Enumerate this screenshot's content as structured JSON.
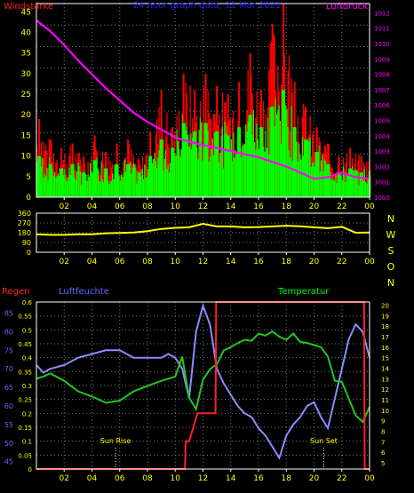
{
  "title": "24 hour graph data, 31 Mar 2021",
  "colors": {
    "background": "#000000",
    "grid": "#7a7a7a",
    "frame": "#ffffff",
    "wind_peak": "#ff0000",
    "wind_avg": "#00ff00",
    "pressure": "#ff00ff",
    "direction": "#ffff00",
    "rain": "#ff2020",
    "humidity": "#8c8cff",
    "temperature": "#1ec81e",
    "tick_text": "#ffff00",
    "pressure_text": "#ff00ff",
    "humidity_text": "#6464ff",
    "rain_text": "#ff2020",
    "temp_text": "#00ff00"
  },
  "chart_data": [
    {
      "type": "bar",
      "title": "24 hour graph data, 31 Mar 2021",
      "left_axis_label": "Windstärke",
      "right_axis_label": "Luftdruck",
      "x_ticks": [
        "02",
        "04",
        "06",
        "08",
        "10",
        "12",
        "14",
        "16",
        "18",
        "20",
        "22",
        "00"
      ],
      "x_unit": "hour (from 00:00 to 24:00)",
      "y_left_ticks": [
        "0",
        "5",
        "10",
        "15",
        "20",
        "25",
        "30",
        "35",
        "40",
        "45"
      ],
      "y_left_range": [
        0,
        47
      ],
      "y_right_ticks": [
        "1000",
        "1001",
        "1002",
        "1003",
        "1004",
        "1005",
        "1006",
        "1007",
        "1008",
        "1009",
        "1010",
        "1011",
        "1012"
      ],
      "y_right_range": [
        1000,
        1012.6
      ],
      "grid": true,
      "series": [
        {
          "name": "",
          "role": "wind-gust-peaks",
          "x": [
            0.2,
            1.0,
            1.8,
            2.6,
            3.4,
            4.2,
            5.0,
            5.8,
            6.6,
            7.4,
            8.2,
            9.0,
            9.8,
            10.6,
            11.4,
            12.2,
            13.0,
            13.8,
            14.6,
            15.4,
            16.2,
            17.0,
            17.8,
            18.6,
            19.4,
            20.2,
            21.0,
            21.8,
            22.6,
            23.4
          ],
          "y": [
            19,
            14,
            12,
            13,
            10,
            15,
            11,
            13,
            14,
            9,
            16,
            26,
            17,
            30,
            26,
            30,
            27,
            25,
            28,
            35,
            26,
            42,
            47,
            28,
            22,
            17,
            13,
            10,
            12,
            10
          ]
        },
        {
          "name": "",
          "role": "wind-average",
          "x": [
            0.2,
            1.0,
            1.8,
            2.6,
            3.4,
            4.2,
            5.0,
            5.8,
            6.6,
            7.4,
            8.2,
            9.0,
            9.8,
            10.6,
            11.4,
            12.2,
            13.0,
            13.8,
            14.6,
            15.4,
            16.2,
            17.0,
            17.8,
            18.6,
            19.4,
            20.2,
            21.0,
            21.8,
            22.6,
            23.4
          ],
          "y": [
            10,
            8,
            7,
            8,
            6,
            9,
            7,
            8,
            8,
            6,
            10,
            14,
            12,
            18,
            16,
            18,
            16,
            15,
            17,
            20,
            17,
            22,
            26,
            17,
            14,
            11,
            8,
            6,
            7,
            6
          ]
        },
        {
          "name": "",
          "role": "pressure",
          "axis": "right",
          "x": [
            0,
            1,
            2,
            3,
            4,
            5,
            6,
            7,
            8,
            9,
            10,
            11,
            12,
            13,
            14,
            15,
            16,
            17,
            18,
            19,
            20,
            21,
            22,
            23,
            24
          ],
          "y": [
            1011.5,
            1010.8,
            1009.9,
            1008.9,
            1008.0,
            1007.1,
            1006.3,
            1005.5,
            1004.9,
            1004.4,
            1003.9,
            1003.6,
            1003.4,
            1003.2,
            1003.0,
            1002.8,
            1002.6,
            1002.3,
            1002.0,
            1001.6,
            1001.2,
            1001.3,
            1001.6,
            1001.3,
            1001.2
          ]
        }
      ]
    },
    {
      "type": "line",
      "right_axis_letters": [
        "N",
        "W",
        "S",
        "O",
        "N"
      ],
      "x_ticks": [
        "02",
        "04",
        "06",
        "08",
        "10",
        "12",
        "14",
        "16",
        "18",
        "20",
        "22",
        "00"
      ],
      "y_ticks": [
        "0",
        "90",
        "180",
        "270",
        "360"
      ],
      "y_range": [
        0,
        360
      ],
      "grid": true,
      "series": [
        {
          "name": "",
          "role": "wind-direction",
          "x": [
            0,
            1,
            2,
            3,
            4,
            5,
            6,
            7,
            8,
            9,
            10,
            11,
            12,
            13,
            14,
            15,
            16,
            17,
            18,
            19,
            20,
            21,
            22,
            23,
            24
          ],
          "y": [
            165,
            160,
            160,
            165,
            165,
            175,
            178,
            182,
            195,
            215,
            225,
            230,
            262,
            238,
            238,
            230,
            232,
            238,
            245,
            240,
            230,
            222,
            235,
            180,
            182
          ]
        }
      ]
    },
    {
      "type": "line",
      "left_axis_labels": [
        "Regen",
        "Luftfeuchte"
      ],
      "right_axis_label": "Temperatur",
      "x_ticks": [
        "02",
        "04",
        "06",
        "08",
        "10",
        "12",
        "14",
        "16",
        "18",
        "20",
        "22",
        "00"
      ],
      "rain_ticks": [
        "0",
        "0.05",
        "0.1",
        "0.15",
        "0.2",
        "0.25",
        "0.3",
        "0.35",
        "0.4",
        "0.45",
        "0.5",
        "0.55",
        "0.6"
      ],
      "rain_range": [
        0,
        0.6
      ],
      "humidity_ticks": [
        "45",
        "50",
        "55",
        "60",
        "65",
        "70",
        "75",
        "80",
        "85"
      ],
      "humidity_range": [
        43,
        88
      ],
      "temp_ticks": [
        "5",
        "6",
        "7",
        "8",
        "9",
        "10",
        "11",
        "12",
        "13",
        "14",
        "15",
        "16",
        "17",
        "18",
        "19",
        "20"
      ],
      "temp_range": [
        4.4,
        20.3
      ],
      "annotations": [
        "Sun Rise",
        "Sun Set"
      ],
      "sun_rise_hour": 5.7,
      "sun_set_hour": 20.7,
      "grid": true,
      "series": [
        {
          "name": "",
          "role": "rain",
          "axis": "rain",
          "x": [
            0,
            10.7,
            10.75,
            11.0,
            11.6,
            11.65,
            12.9,
            12.95,
            23.6,
            23.65,
            24
          ],
          "y": [
            0,
            0,
            0.1,
            0.1,
            0.2,
            0.2,
            0.2,
            0.6,
            0.6,
            0,
            0
          ]
        },
        {
          "name": "",
          "role": "humidity",
          "axis": "humidity",
          "x": [
            0,
            0.5,
            1,
            2,
            3,
            4,
            5,
            6,
            7,
            8,
            9,
            9.5,
            10,
            10.5,
            11,
            11.5,
            12,
            12.5,
            13,
            13.5,
            14,
            14.5,
            15,
            15.5,
            16,
            16.5,
            17,
            17.5,
            18,
            18.5,
            19,
            19.5,
            20,
            20.5,
            21,
            21.5,
            22,
            22.5,
            23,
            23.5,
            24
          ],
          "y": [
            71,
            69,
            70,
            71,
            73,
            74,
            75,
            75,
            73,
            73,
            73,
            74,
            73,
            70,
            62,
            80,
            87,
            82,
            70,
            66,
            63,
            60,
            58,
            57,
            54,
            52,
            49,
            46,
            52,
            55,
            57,
            60,
            61,
            57,
            54,
            62,
            70,
            78,
            82,
            80,
            73
          ]
        },
        {
          "name": "",
          "role": "temperature",
          "axis": "temp",
          "x": [
            0,
            0.5,
            1,
            2,
            3,
            4,
            5,
            6,
            7,
            8,
            9,
            10,
            10.5,
            11,
            11.5,
            12,
            12.5,
            13,
            13.5,
            14,
            14.5,
            15,
            15.5,
            16,
            16.5,
            17,
            17.5,
            18,
            18.5,
            19,
            19.5,
            20,
            20.5,
            21,
            21.5,
            22,
            22.5,
            23,
            23.5,
            24
          ],
          "y": [
            13.0,
            13.2,
            13.5,
            12.8,
            11.8,
            11.3,
            10.7,
            10.9,
            11.8,
            12.3,
            12.8,
            13.2,
            15.1,
            11.2,
            10.1,
            12.9,
            13.9,
            14.4,
            15.7,
            16.0,
            16.4,
            16.7,
            16.6,
            17.3,
            17.1,
            17.5,
            17.0,
            16.7,
            17.3,
            16.5,
            16.4,
            16.2,
            16.0,
            15.1,
            12.8,
            12.7,
            11.1,
            9.5,
            8.9,
            10.3
          ]
        }
      ]
    }
  ]
}
